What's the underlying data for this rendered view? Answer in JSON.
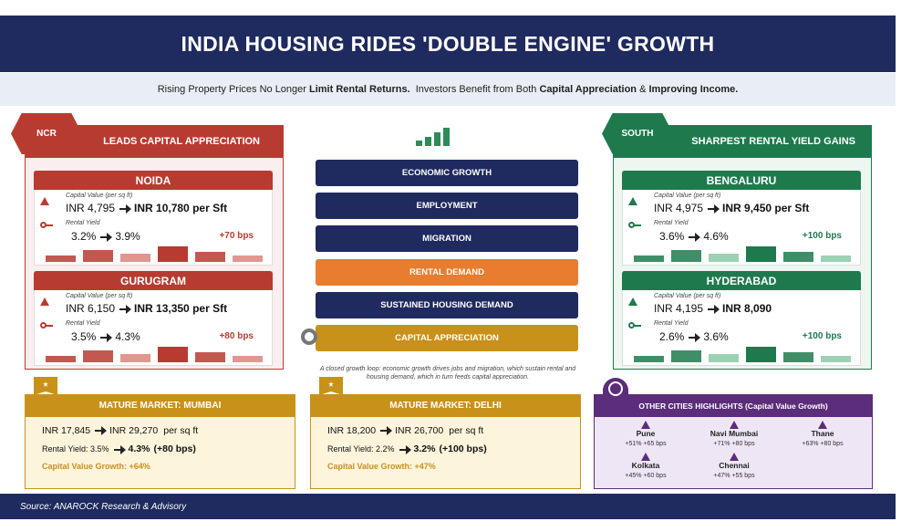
{
  "header": {
    "title": "INDIA HOUSING RIDES 'DOUBLE ENGINE' GROWTH"
  },
  "subtitle": [
    {
      "text": "Rising Property Prices No Longer ",
      "bold": false
    },
    {
      "text": "Limit Rental Returns.",
      "bold": true
    },
    {
      "text": "  Investors Benefit from Both ",
      "bold": false
    },
    {
      "text": "Capital Appreciation",
      "bold": true
    },
    {
      "text": " & ",
      "bold": false
    },
    {
      "text": "Improving Income.",
      "bold": true
    }
  ],
  "left_panel": {
    "tag": "NCR",
    "heading": "LEADS CAPITAL APPRECIATION",
    "color": "#b83b32",
    "light": "#d9857c",
    "pale": "#fbeeee",
    "cities": [
      {
        "name": "NOIDA",
        "cv_label": "Capital Value (per sq ft)",
        "cv_from": "INR 4,795",
        "cv_to": "INR 10,780 per Sft",
        "ry_label": "Rental Yield",
        "ry_from": "3.2%",
        "ry_to": "3.9%",
        "change": "+70 bps"
      },
      {
        "name": "GURUGRAM",
        "cv_label": "Capital Value (per sq ft)",
        "cv_from": "INR 6,150",
        "cv_to": "INR 13,350 per Sft",
        "ry_label": "Rental Yield",
        "ry_from": "3.5%",
        "ry_to": "4.3%",
        "change": "+80 bps"
      }
    ]
  },
  "flow": {
    "steps": [
      "ECONOMIC GROWTH",
      "EMPLOYMENT",
      "MIGRATION",
      "RENTAL DEMAND",
      "SUSTAINED HOUSING DEMAND",
      "CAPITAL APPRECIATION"
    ],
    "caption": "A closed growth loop: economic growth drives jobs and migration, which sustain rental and housing demand, which in turn feeds capital appreciation."
  },
  "right_panel": {
    "tag": "SOUTH",
    "heading": "SHARPEST RENTAL YIELD GAINS",
    "color": "#1e7a4d",
    "light": "#8cc9a6",
    "pale": "#edf6f0",
    "cities": [
      {
        "name": "BENGALURU",
        "cv_label": "Capital Value (per sq ft)",
        "cv_from": "INR 4,975",
        "cv_to": "INR 9,450 per Sft",
        "ry_label": "Rental Yield",
        "ry_from": "3.6%",
        "ry_to": "4.6%",
        "change": "+100 bps"
      },
      {
        "name": "HYDERABAD",
        "cv_label": "Capital Value (per sq ft)",
        "cv_from": "INR 4,195",
        "cv_to": "INR 8,090",
        "ry_label": "Rental Yield",
        "ry_from": "2.6%",
        "ry_to": "3.6%",
        "change": "+100 bps"
      }
    ]
  },
  "mature_markets": [
    {
      "title": "MATURE MARKET: MUMBAI",
      "cv_from": "INR 17,845",
      "cv_to": "INR 29,270",
      "cv_unit": "per sq ft",
      "ry_from": "Rental Yield: 3.5%",
      "ry_to": "4.3%",
      "ry_change": "(+80 bps)",
      "growth": "Capital Value Growth: +64%"
    },
    {
      "title": "MATURE MARKET: DELHI",
      "cv_from": "INR 18,200",
      "cv_to": "INR 26,700",
      "cv_unit": "per sq ft",
      "ry_from": "Rental Yield: 2.2%",
      "ry_to": "3.2%",
      "ry_change": "(+100 bps)",
      "growth": "Capital Value Growth: +47%"
    }
  ],
  "other_cities": {
    "title": "OTHER CITIES HIGHLIGHTS (Capital Value Growth)",
    "cities": [
      {
        "name": "Pune",
        "stats": "+51% +65 bps"
      },
      {
        "name": "Navi Mumbai",
        "stats": "+71% +80 bps"
      },
      {
        "name": "Thane",
        "stats": "+63% +80 bps"
      },
      {
        "name": "Kolkata",
        "stats": "+45% +60 bps"
      },
      {
        "name": "Chennai",
        "stats": "+47% +55 bps"
      }
    ]
  },
  "footer": {
    "source": "Source: ANAROCK Research & Advisory"
  }
}
